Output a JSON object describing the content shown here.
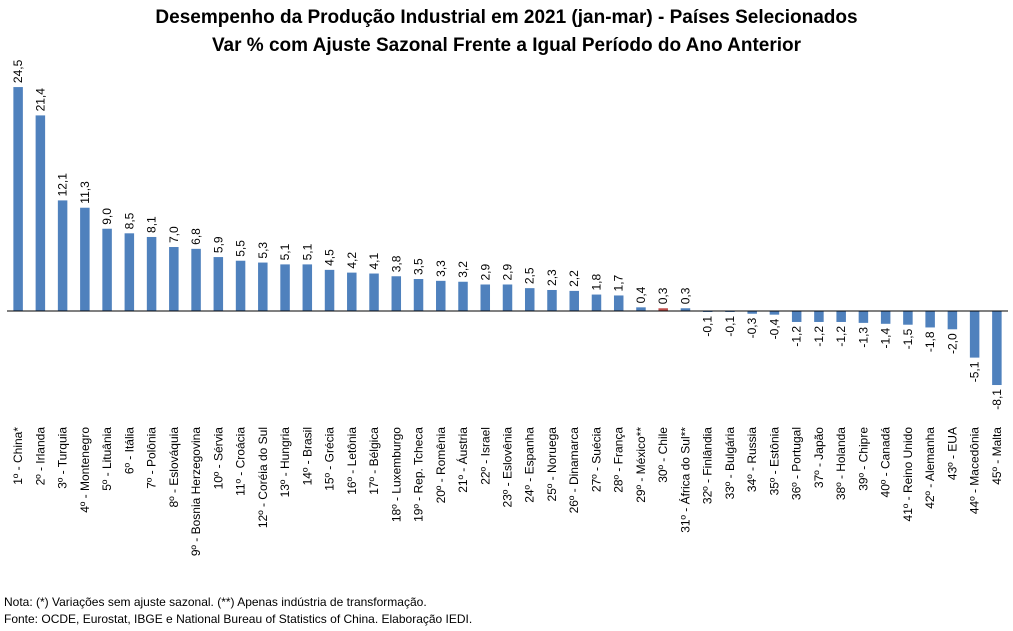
{
  "title": "Desempenho da Produção Industrial em 2021 (jan-mar) - Países Selecionados",
  "subtitle": "Var % com Ajuste Sazonal Frente a Igual Período do Ano Anterior",
  "notes": {
    "note": "Nota: (*) Variações sem ajuste sazonal. (**) Apenas indústria de transformação.",
    "source": "Fonte: OCDE, Eurostat, IBGE e National Bureau of Statistics of China. Elaboração IEDI."
  },
  "colors": {
    "bar": "#4f81bd",
    "highlight": "#c0504d",
    "axis": "#000000"
  },
  "chart_data": {
    "type": "bar",
    "title": "Desempenho da Produção Industrial em 2021 (jan-mar) - Países Selecionados",
    "subtitle": "Var % com Ajuste Sazonal Frente a Igual Período do Ano Anterior",
    "xlabel": "",
    "ylabel": "",
    "ylim": [
      -8.1,
      24.5
    ],
    "grid": false,
    "highlight_category": "30º - Chile",
    "categories": [
      "1º - China*",
      "2º - Irlanda",
      "3º - Turquia",
      "4º - Montenegro",
      "5º - Lituânia",
      "6º - Itália",
      "7º - Polônia",
      "8º - Eslováquia",
      "9º - Bosnia Herzegovina",
      "10º - Sérvia",
      "11º - Croácia",
      "12º - Coréia do Sul",
      "13º - Hungria",
      "14º - Brasil",
      "15º - Grécia",
      "16º - Letônia",
      "17º - Bélgica",
      "18º - Luxemburgo",
      "19º - Rep. Tcheca",
      "20º - Romênia",
      "21º - Áustria",
      "22º - Israel",
      "23º - Eslovênia",
      "24º - Espanha",
      "25º - Noruega",
      "26º - Dinamarca",
      "27º - Suécia",
      "28º - França",
      "29º - México**",
      "30º - Chile",
      "31º - África do Sul**",
      "32º - Finlândia",
      "33º - Bulgária",
      "34º - Russia",
      "35º - Estônia",
      "36º - Portugal",
      "37º - Japão",
      "38º - Holanda",
      "39º - Chipre",
      "40º - Canadá",
      "41º - Reino Unido",
      "42º - Alemanha",
      "43º - EUA",
      "44º - Macedônia",
      "45º - Malta"
    ],
    "values": [
      24.5,
      21.4,
      12.1,
      11.3,
      9.0,
      8.5,
      8.1,
      7.0,
      6.8,
      5.9,
      5.5,
      5.3,
      5.1,
      5.1,
      4.5,
      4.2,
      4.1,
      3.8,
      3.5,
      3.3,
      3.2,
      2.9,
      2.9,
      2.5,
      2.3,
      2.2,
      1.8,
      1.7,
      0.4,
      0.3,
      0.3,
      -0.1,
      -0.1,
      -0.3,
      -0.4,
      -1.2,
      -1.2,
      -1.2,
      -1.3,
      -1.4,
      -1.5,
      -1.8,
      -2.0,
      -5.1,
      -8.1
    ],
    "value_labels": [
      "24,5",
      "21,4",
      "12,1",
      "11,3",
      "9,0",
      "8,5",
      "8,1",
      "7,0",
      "6,8",
      "5,9",
      "5,5",
      "5,3",
      "5,1",
      "5,1",
      "4,5",
      "4,2",
      "4,1",
      "3,8",
      "3,5",
      "3,3",
      "3,2",
      "2,9",
      "2,9",
      "2,5",
      "2,3",
      "2,2",
      "1,8",
      "1,7",
      "0,4",
      "0,3",
      "0,3",
      "-0,1",
      "-0,1",
      "-0,3",
      "-0,4",
      "-1,2",
      "-1,2",
      "-1,2",
      "-1,3",
      "-1,4",
      "-1,5",
      "-1,8",
      "-2,0",
      "-5,1",
      "-8,1"
    ]
  }
}
